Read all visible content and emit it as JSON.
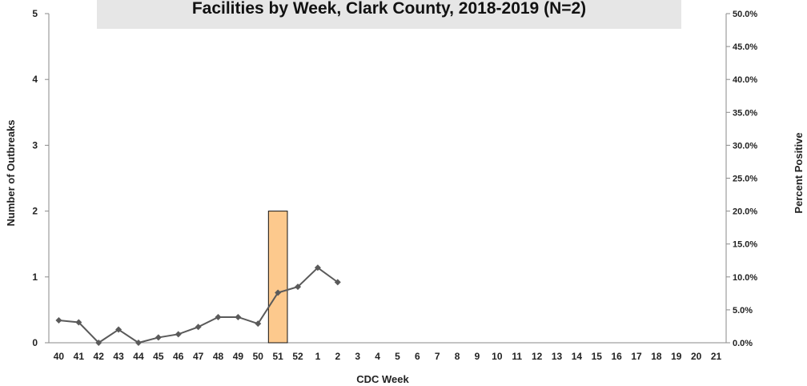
{
  "chart_data": {
    "type": "bar",
    "title": "Facilities by Week, Clark County, 2018-2019 (N=2)",
    "xlabel": "CDC Week",
    "ylabel": "Number of Outbreaks",
    "y2label": "Percent Positive",
    "ylim": [
      0,
      5
    ],
    "y2lim": [
      0,
      50
    ],
    "yticks": [
      "0",
      "1",
      "2",
      "3",
      "4",
      "5"
    ],
    "y2ticks": [
      "0.0%",
      "5.0%",
      "10.0%",
      "15.0%",
      "20.0%",
      "25.0%",
      "30.0%",
      "35.0%",
      "40.0%",
      "45.0%",
      "50.0%"
    ],
    "categories": [
      "40",
      "41",
      "42",
      "43",
      "44",
      "45",
      "46",
      "47",
      "48",
      "49",
      "50",
      "51",
      "52",
      "1",
      "2",
      "3",
      "4",
      "5",
      "6",
      "7",
      "8",
      "9",
      "10",
      "11",
      "12",
      "13",
      "14",
      "15",
      "16",
      "17",
      "18",
      "19",
      "20",
      "21"
    ],
    "series": [
      {
        "type": "bar",
        "axis": "left",
        "color": "#fdc98d",
        "stroke": "#111111",
        "values": [
          0,
          0,
          0,
          0,
          0,
          0,
          0,
          0,
          0,
          0,
          0,
          2,
          0,
          0,
          0,
          0,
          0,
          0,
          0,
          0,
          0,
          0,
          0,
          0,
          0,
          0,
          0,
          0,
          0,
          0,
          0,
          0,
          0,
          0
        ]
      },
      {
        "type": "line",
        "axis": "right",
        "color": "#5a5a5a",
        "values": [
          3.4,
          3.1,
          0.0,
          2.0,
          0.0,
          0.8,
          1.3,
          2.4,
          3.9,
          3.9,
          2.9,
          7.6,
          8.5,
          11.4,
          9.2,
          null,
          null,
          null,
          null,
          null,
          null,
          null,
          null,
          null,
          null,
          null,
          null,
          null,
          null,
          null,
          null,
          null,
          null,
          null
        ]
      }
    ],
    "grid": false,
    "legend": "none"
  }
}
